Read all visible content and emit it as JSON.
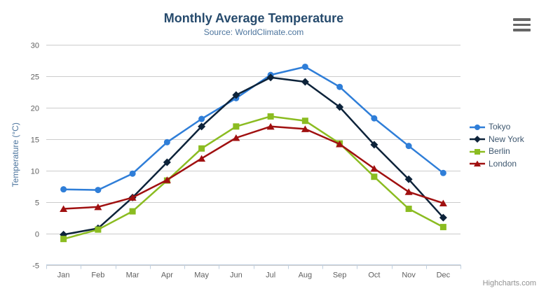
{
  "chart_data": {
    "type": "line",
    "title": "Monthly Average Temperature",
    "subtitle": "Source: WorldClimate.com",
    "categories": [
      "Jan",
      "Feb",
      "Mar",
      "Apr",
      "May",
      "Jun",
      "Jul",
      "Aug",
      "Sep",
      "Oct",
      "Nov",
      "Dec"
    ],
    "series": [
      {
        "name": "Tokyo",
        "color": "#2f7ed8",
        "marker": "circle",
        "values": [
          7.0,
          6.9,
          9.5,
          14.5,
          18.2,
          21.5,
          25.2,
          26.5,
          23.3,
          18.3,
          13.9,
          9.6
        ]
      },
      {
        "name": "New York",
        "color": "#0d233a",
        "marker": "diamond",
        "values": [
          -0.2,
          0.8,
          5.7,
          11.3,
          17.0,
          22.0,
          24.8,
          24.1,
          20.1,
          14.1,
          8.6,
          2.5
        ]
      },
      {
        "name": "Berlin",
        "color": "#8bbc21",
        "marker": "square",
        "values": [
          -0.9,
          0.6,
          3.5,
          8.4,
          13.5,
          17.0,
          18.6,
          17.9,
          14.3,
          9.0,
          3.9,
          1.0
        ]
      },
      {
        "name": "London",
        "color": "#a01010",
        "marker": "triangle",
        "values": [
          3.9,
          4.2,
          5.7,
          8.5,
          11.9,
          15.2,
          17.0,
          16.6,
          14.2,
          10.3,
          6.6,
          4.8
        ]
      }
    ],
    "xlabel": "",
    "ylabel": "Temperature (°C)",
    "ylim": [
      -5,
      30
    ],
    "ytick_step": 5,
    "grid": true,
    "legend_position": "right"
  },
  "export_menu": {
    "icon": "hamburger-icon"
  },
  "credit": {
    "label": "Highcharts.com"
  },
  "style": {
    "title_color": "#274b6d",
    "subtitle_color": "#4d759e",
    "axis_label_color": "#606060",
    "axis_title_color": "#4d759e",
    "grid_color": "#cccccc",
    "axis_line_color": "#c0d0e0",
    "legend_text_color": "#3e576f",
    "credit_color": "#909090",
    "background": "#ffffff"
  }
}
